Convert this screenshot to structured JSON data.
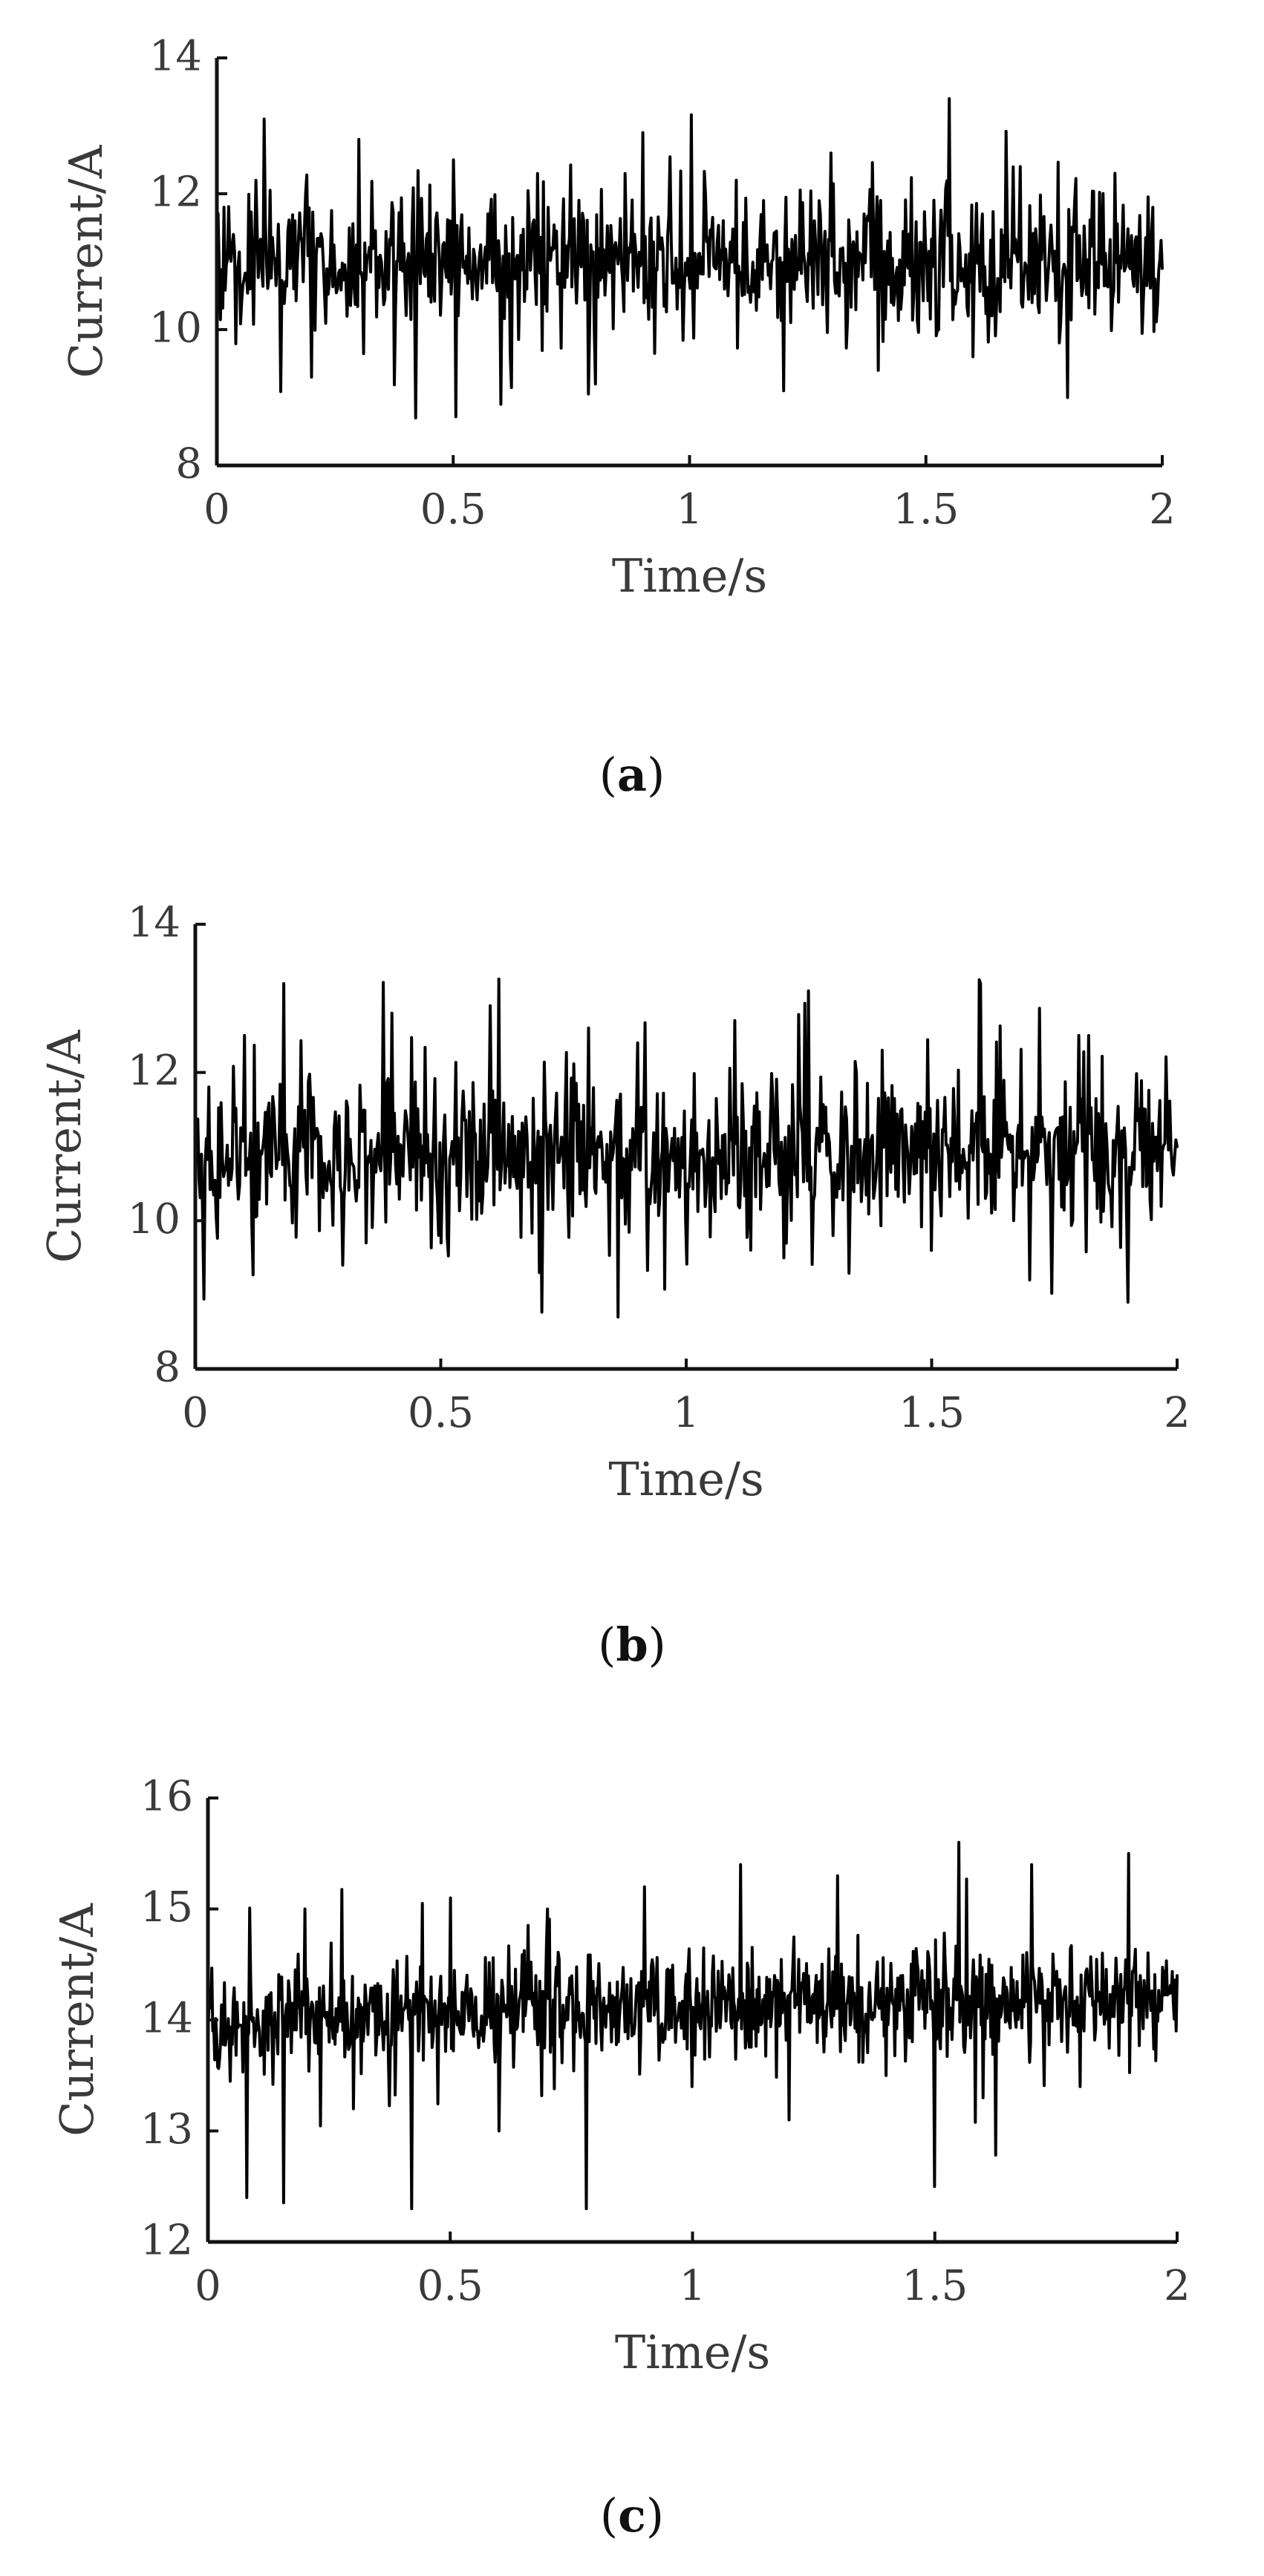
{
  "colors": {
    "line": "#000000",
    "axis": "#111111",
    "text": "#3a3a3a",
    "background": "#ffffff"
  },
  "chart_data": [
    {
      "type": "line",
      "panel": "a",
      "caption": "a",
      "xlabel": "Time/s",
      "ylabel": "Current/A",
      "xlim": [
        0,
        2
      ],
      "ylim": [
        8,
        14
      ],
      "xticks": [
        "0",
        "0.5",
        "1",
        "1.5",
        "2"
      ],
      "yticks": [
        "8",
        "10",
        "12",
        "14"
      ],
      "grid": false,
      "series": [
        {
          "samples": 800,
          "baseline": 11.0,
          "spread": 0.95,
          "low": 8.6,
          "high": 13.5,
          "trend": 0.0,
          "x": [
            0.0,
            0.1,
            0.2,
            0.3,
            0.42,
            0.5,
            0.6,
            0.7,
            0.8,
            0.9,
            1.0,
            1.1,
            1.2,
            1.3,
            1.4,
            1.5,
            1.55,
            1.6,
            1.7,
            1.8,
            1.9,
            2.0
          ],
          "y": [
            11.0,
            13.1,
            9.3,
            12.8,
            8.7,
            12.5,
            8.9,
            11.8,
            9.2,
            12.9,
            10.8,
            12.2,
            9.1,
            12.6,
            9.4,
            11.2,
            13.4,
            9.6,
            12.4,
            9.0,
            12.3,
            10.9
          ]
        }
      ]
    },
    {
      "type": "line",
      "panel": "b",
      "caption": "b",
      "xlabel": "Time/s",
      "ylabel": "Current/A",
      "xlim": [
        0,
        2
      ],
      "ylim": [
        8,
        14
      ],
      "xticks": [
        "0",
        "0.5",
        "1",
        "1.5",
        "2"
      ],
      "yticks": [
        "8",
        "10",
        "12",
        "14"
      ],
      "grid": false,
      "series": [
        {
          "samples": 800,
          "baseline": 10.9,
          "spread": 0.9,
          "low": 8.6,
          "high": 13.3,
          "trend": 0.0,
          "x": [
            0.0,
            0.1,
            0.18,
            0.3,
            0.4,
            0.5,
            0.6,
            0.7,
            0.8,
            0.86,
            0.9,
            1.0,
            1.1,
            1.2,
            1.25,
            1.3,
            1.4,
            1.5,
            1.6,
            1.7,
            1.8,
            1.9,
            2.0
          ],
          "y": [
            10.8,
            12.5,
            13.2,
            9.4,
            12.8,
            9.7,
            12.9,
            9.3,
            12.6,
            8.7,
            12.4,
            10.0,
            12.7,
            9.5,
            13.1,
            9.8,
            12.3,
            9.6,
            13.2,
            9.2,
            12.5,
            8.9,
            11.0
          ]
        }
      ]
    },
    {
      "type": "line",
      "panel": "c",
      "caption": "c",
      "xlabel": "Time/s",
      "ylabel": "Current/A",
      "xlim": [
        0,
        2
      ],
      "ylim": [
        12,
        16
      ],
      "xticks": [
        "0",
        "0.5",
        "1",
        "1.5",
        "2"
      ],
      "yticks": [
        "12",
        "13",
        "14",
        "15",
        "16"
      ],
      "grid": false,
      "series": [
        {
          "samples": 1000,
          "baseline": 14.0,
          "spread": 0.42,
          "low": 12.25,
          "high": 15.7,
          "trend": 0.25,
          "x": [
            0.0,
            0.08,
            0.2,
            0.3,
            0.42,
            0.5,
            0.6,
            0.7,
            0.78,
            0.9,
            1.0,
            1.1,
            1.2,
            1.3,
            1.4,
            1.5,
            1.55,
            1.6,
            1.7,
            1.8,
            1.9,
            2.0
          ],
          "y": [
            13.9,
            12.4,
            15.0,
            13.2,
            12.3,
            15.1,
            13.0,
            15.0,
            12.3,
            15.2,
            13.4,
            15.4,
            13.1,
            15.3,
            13.5,
            12.5,
            15.6,
            13.3,
            15.4,
            13.4,
            15.5,
            14.4
          ]
        }
      ]
    }
  ]
}
